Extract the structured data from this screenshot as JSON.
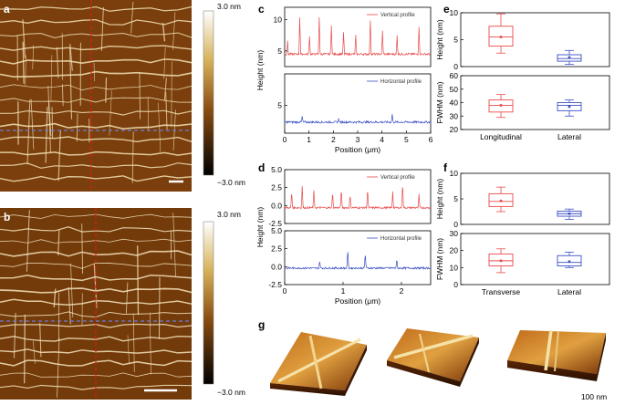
{
  "panels": {
    "a": {
      "label": "a"
    },
    "b": {
      "label": "b"
    },
    "c": {
      "label": "c"
    },
    "d": {
      "label": "d"
    },
    "e": {
      "label": "e"
    },
    "f": {
      "label": "f"
    },
    "g": {
      "label": "g",
      "scale_text": "100 nm"
    }
  },
  "colorbar_a": {
    "top": "3.0 nm",
    "bottom": "−3.0 nm"
  },
  "colorbar_b": {
    "top": "3.0 nm",
    "bottom": "−3.0 nm"
  },
  "colors": {
    "vertical": "#e84a4a",
    "horizontal": "#3b4fc4",
    "dash_red": "#e31a1c",
    "dash_blue": "#6a7fd8"
  },
  "chart_data": [
    {
      "id": "c",
      "type": "line",
      "shared_xlabel": "Position (μm)",
      "shared_ylabel": "Height (nm)",
      "x_ticks": [
        "0",
        "1",
        "2",
        "3",
        "4",
        "5",
        "6"
      ],
      "xlim": [
        0,
        6
      ],
      "subplots": [
        {
          "legend": "Vertical profile",
          "ylim": [
            2.5,
            12
          ],
          "y_ticks": [
            "5",
            "10"
          ],
          "baseline": 4.5,
          "spikes": [
            {
              "x": 0.12,
              "y": 6.5
            },
            {
              "x": 0.62,
              "y": 10.5
            },
            {
              "x": 1.02,
              "y": 7.5
            },
            {
              "x": 1.42,
              "y": 10.5
            },
            {
              "x": 1.92,
              "y": 9.2
            },
            {
              "x": 2.42,
              "y": 8.0
            },
            {
              "x": 2.92,
              "y": 7.5
            },
            {
              "x": 3.52,
              "y": 10.0
            },
            {
              "x": 4.02,
              "y": 8.2
            },
            {
              "x": 4.62,
              "y": 7.5
            },
            {
              "x": 5.52,
              "y": 9.0
            }
          ]
        },
        {
          "legend": "Horizontal profile",
          "ylim": [
            1.5,
            9
          ],
          "y_ticks": [
            "5"
          ],
          "baseline": 2.9,
          "spikes": [
            {
              "x": 0.72,
              "y": 3.6
            },
            {
              "x": 2.22,
              "y": 3.4
            },
            {
              "x": 4.42,
              "y": 3.9
            }
          ]
        }
      ]
    },
    {
      "id": "d",
      "type": "line",
      "shared_xlabel": "Position (μm)",
      "shared_ylabel": "Height (nm)",
      "x_ticks": [
        "0",
        "1",
        "2"
      ],
      "xlim": [
        0,
        2.5
      ],
      "subplots": [
        {
          "legend": "Vertical profile",
          "ylim": [
            -2.5,
            5.0
          ],
          "y_ticks": [
            "-2.5",
            "0.0",
            "2.5",
            "5.0"
          ],
          "baseline": -0.3,
          "spikes": [
            {
              "x": 0.12,
              "y": 2.0
            },
            {
              "x": 0.3,
              "y": 2.8
            },
            {
              "x": 0.5,
              "y": 2.2
            },
            {
              "x": 0.82,
              "y": 2.0
            },
            {
              "x": 0.97,
              "y": 2.5
            },
            {
              "x": 1.12,
              "y": 1.5
            },
            {
              "x": 1.42,
              "y": 2.5
            },
            {
              "x": 1.85,
              "y": 2.0
            },
            {
              "x": 2.02,
              "y": 3.5
            },
            {
              "x": 2.3,
              "y": 1.5
            }
          ]
        },
        {
          "legend": "Horizontal profile",
          "ylim": [
            -2.5,
            5.0
          ],
          "y_ticks": [
            "-2.5",
            "0.0",
            "2.5",
            "5.0"
          ],
          "baseline": -0.2,
          "spikes": [
            {
              "x": 1.08,
              "y": 2.5
            },
            {
              "x": 1.38,
              "y": 2.0
            },
            {
              "x": 1.92,
              "y": 1.0
            },
            {
              "x": 0.6,
              "y": 0.8
            }
          ]
        }
      ]
    },
    {
      "id": "e",
      "type": "box",
      "categories": [
        "Longitudinal",
        "Lateral"
      ],
      "subplots": [
        {
          "ylabel": "Height (nm)",
          "ylim": [
            0,
            10
          ],
          "y_ticks": [
            "0",
            "5",
            "10"
          ],
          "boxes": [
            {
              "name": "Longitudinal",
              "whisker_low": 2.5,
              "q1": 3.8,
              "median": 5.5,
              "q3": 7.5,
              "whisker_high": 9.8,
              "mean": 5.5,
              "color": "#e84a4a"
            },
            {
              "name": "Lateral",
              "whisker_low": 0.4,
              "q1": 1.0,
              "median": 1.5,
              "q3": 2.2,
              "whisker_high": 3.0,
              "mean": 1.7,
              "color": "#3b4fc4"
            }
          ]
        },
        {
          "ylabel": "FWHM (nm)",
          "ylim": [
            20,
            60
          ],
          "y_ticks": [
            "20",
            "30",
            "40",
            "50",
            "60"
          ],
          "boxes": [
            {
              "name": "Longitudinal",
              "whisker_low": 29,
              "q1": 33,
              "median": 38,
              "q3": 42,
              "whisker_high": 46,
              "mean": 38,
              "color": "#e84a4a"
            },
            {
              "name": "Lateral",
              "whisker_low": 30,
              "q1": 34,
              "median": 38,
              "q3": 40,
              "whisker_high": 42,
              "mean": 37,
              "color": "#3b4fc4"
            }
          ]
        }
      ]
    },
    {
      "id": "f",
      "type": "box",
      "categories": [
        "Transverse",
        "Lateral"
      ],
      "subplots": [
        {
          "ylabel": "Height (nm)",
          "ylim": [
            0,
            10
          ],
          "y_ticks": [
            "0",
            "5",
            "10"
          ],
          "boxes": [
            {
              "name": "Transverse",
              "whisker_low": 2.5,
              "q1": 3.5,
              "median": 4.5,
              "q3": 6.0,
              "whisker_high": 7.3,
              "mean": 4.6,
              "color": "#e84a4a"
            },
            {
              "name": "Lateral",
              "whisker_low": 1.0,
              "q1": 1.6,
              "median": 2.1,
              "q3": 2.6,
              "whisker_high": 3.0,
              "mean": 2.1,
              "color": "#3b4fc4"
            }
          ]
        },
        {
          "ylabel": "FWHM (nm)",
          "ylim": [
            0,
            30
          ],
          "y_ticks": [
            "0",
            "10",
            "20",
            "30"
          ],
          "boxes": [
            {
              "name": "Transverse",
              "whisker_low": 7,
              "q1": 11,
              "median": 14,
              "q3": 18,
              "whisker_high": 21,
              "mean": 14,
              "color": "#e84a4a"
            },
            {
              "name": "Lateral",
              "whisker_low": 10,
              "q1": 11,
              "median": 13,
              "q3": 17,
              "whisker_high": 19,
              "mean": 13.5,
              "color": "#3b4fc4"
            }
          ]
        }
      ]
    }
  ]
}
